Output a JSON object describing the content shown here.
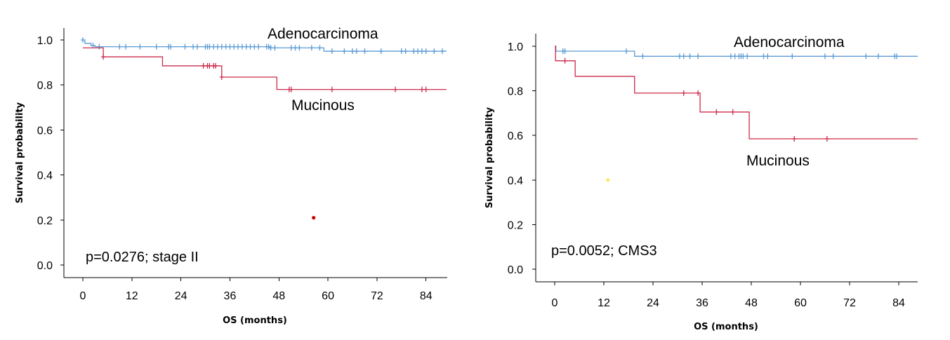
{
  "chart_data": [
    {
      "type": "line",
      "subtype": "kaplan-meier",
      "xlabel": "OS (months)",
      "ylabel": "Survival probability",
      "xlim": [
        -4,
        86
      ],
      "ylim": [
        0,
        1.04
      ],
      "xticks": [
        "0",
        "12",
        "24",
        "36",
        "48",
        "60",
        "72",
        "84"
      ],
      "yticks": [
        "0.0",
        "0.2",
        "0.4",
        "0.6",
        "0.8",
        "1.0"
      ],
      "annotation": "p=0.0276; stage II",
      "series": [
        {
          "name": "Adenocarcinoma",
          "color": "#5b9bd5",
          "steps": [
            [
              0,
              1.0
            ],
            [
              0.5,
              0.985
            ],
            [
              2,
              0.975
            ],
            [
              3,
              0.97
            ],
            [
              46,
              0.965
            ],
            [
              59,
              0.95
            ],
            [
              89,
              0.95
            ]
          ],
          "censors": [
            0,
            2.5,
            4,
            9,
            10.5,
            14,
            18,
            21,
            21.5,
            25,
            27,
            28,
            30,
            30.5,
            31,
            32,
            33,
            34,
            35,
            36,
            37,
            38,
            39,
            40,
            41,
            42,
            43,
            45,
            45.5,
            46,
            47,
            51,
            52,
            53,
            56,
            58,
            61,
            64,
            66,
            67,
            69,
            73,
            78,
            79,
            81,
            82,
            83,
            84,
            86,
            88
          ]
        },
        {
          "name": "Mucinous",
          "color": "#cc2a4a",
          "steps": [
            [
              0,
              0.965
            ],
            [
              5,
              0.925
            ],
            [
              19.5,
              0.885
            ],
            [
              34,
              0.835
            ],
            [
              47.5,
              0.78
            ],
            [
              89,
              0.78
            ]
          ],
          "censors": [
            5,
            29.5,
            30.5,
            31,
            32,
            32.5,
            34,
            50.5,
            51,
            61,
            76.5,
            83,
            84
          ]
        }
      ],
      "stray_point": {
        "x": 56.5,
        "y": 0.21,
        "color": "#cc0000"
      }
    },
    {
      "type": "line",
      "subtype": "kaplan-meier",
      "xlabel": "OS (months)",
      "ylabel": "Survival probability",
      "xlim": [
        -4,
        86
      ],
      "ylim": [
        0,
        1.04
      ],
      "xticks": [
        "0",
        "12",
        "24",
        "36",
        "48",
        "60",
        "72",
        "84"
      ],
      "yticks": [
        "0.0",
        "0.2",
        "0.4",
        "0.6",
        "0.8",
        "1.0"
      ],
      "annotation": "p=0.0052; CMS3",
      "series": [
        {
          "name": "Adenocarcinoma",
          "color": "#5b9bd5",
          "steps": [
            [
              0,
              1.0
            ],
            [
              0.3,
              0.978
            ],
            [
              19,
              0.978
            ],
            [
              19.5,
              0.955
            ],
            [
              89,
              0.955
            ]
          ],
          "censors": [
            2,
            2.5,
            17.5,
            21.5,
            30.5,
            31.5,
            33,
            35,
            43,
            44,
            45,
            45.5,
            46,
            47,
            51,
            52,
            58,
            66,
            68,
            76,
            79,
            83,
            83.5
          ]
        },
        {
          "name": "Mucinous",
          "color": "#cc2a4a",
          "steps": [
            [
              0,
              1.0
            ],
            [
              0.2,
              0.935
            ],
            [
              5,
              0.865
            ],
            [
              19.5,
              0.79
            ],
            [
              35.5,
              0.705
            ],
            [
              47.5,
              0.585
            ],
            [
              89,
              0.585
            ]
          ],
          "censors": [
            2.5,
            31.5,
            35,
            39.5,
            43.5,
            58.5,
            66.5
          ]
        }
      ],
      "stray_point": {
        "x": 13,
        "y": 0.4,
        "color": "#ffe766"
      }
    }
  ]
}
